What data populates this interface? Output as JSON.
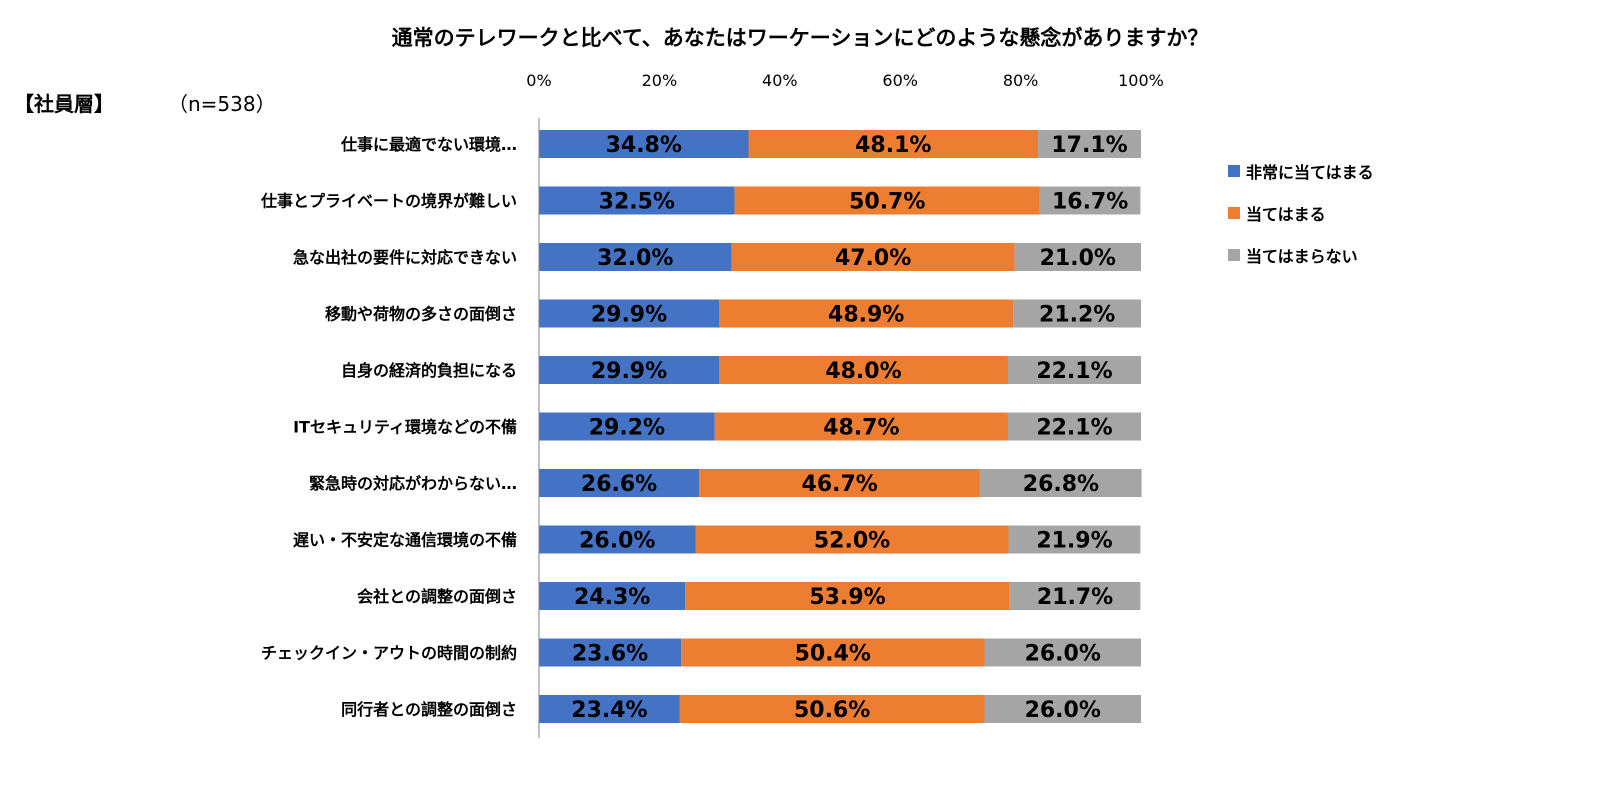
{
  "header": {
    "title": "通常のテレワークと比べて、あなたはワーケーションにどのような懸念がありますか？",
    "group_label": "【社員層】",
    "sample_size": "（n=538）"
  },
  "colors": {
    "series_1": "#4472C4",
    "series_2": "#ED7D31",
    "series_3": "#A5A5A5",
    "axis": "#808080"
  },
  "chart_data": {
    "type": "bar",
    "orientation": "horizontal",
    "stacked": "percent",
    "title": "通常のテレワークと比べて、あなたはワーケーションにどのような懸念がありますか？",
    "xlabel": "",
    "ylabel": "",
    "xlim": [
      0,
      100
    ],
    "ticks": [
      "0%",
      "20%",
      "40%",
      "60%",
      "80%",
      "100%"
    ],
    "tick_values": [
      0,
      20,
      40,
      60,
      80,
      100
    ],
    "grid": false,
    "legend_position": "right",
    "categories": [
      "仕事に最適でない環境…",
      "仕事とプライベートの境界が難しい",
      "急な出社の要件に対応できない",
      "移動や荷物の多さの面倒さ",
      "自身の経済的負担になる",
      "ITセキュリティ環境などの不備",
      "緊急時の対応がわからない…",
      "遅い・不安定な通信環境の不備",
      "会社との調整の面倒さ",
      "チェックイン・アウトの時間の制約",
      "同行者との調整の面倒さ"
    ],
    "series": [
      {
        "name": "非常に当てはまる",
        "values": [
          34.8,
          32.5,
          32.0,
          29.9,
          29.9,
          29.2,
          26.6,
          26.0,
          24.3,
          23.6,
          23.4
        ],
        "labels": [
          "34.8%",
          "32.5%",
          "32.0%",
          "29.9%",
          "29.9%",
          "29.2%",
          "26.6%",
          "26.0%",
          "24.3%",
          "23.6%",
          "23.4%"
        ]
      },
      {
        "name": "当てはまる",
        "values": [
          48.1,
          50.7,
          47.0,
          48.9,
          48.0,
          48.7,
          46.7,
          52.0,
          53.9,
          50.4,
          50.6
        ],
        "labels": [
          "48.1%",
          "50.7%",
          "47.0%",
          "48.9%",
          "48.0%",
          "48.7%",
          "46.7%",
          "52.0%",
          "53.9%",
          "50.4%",
          "50.6%"
        ]
      },
      {
        "name": "当てはまらない",
        "values": [
          17.1,
          16.7,
          21.0,
          21.2,
          22.1,
          22.1,
          26.8,
          21.9,
          21.7,
          26.0,
          26.0
        ],
        "labels": [
          "17.1%",
          "16.7%",
          "21.0%",
          "21.2%",
          "22.1%",
          "22.1%",
          "26.8%",
          "21.9%",
          "21.7%",
          "26.0%",
          "26.0%"
        ]
      }
    ]
  }
}
